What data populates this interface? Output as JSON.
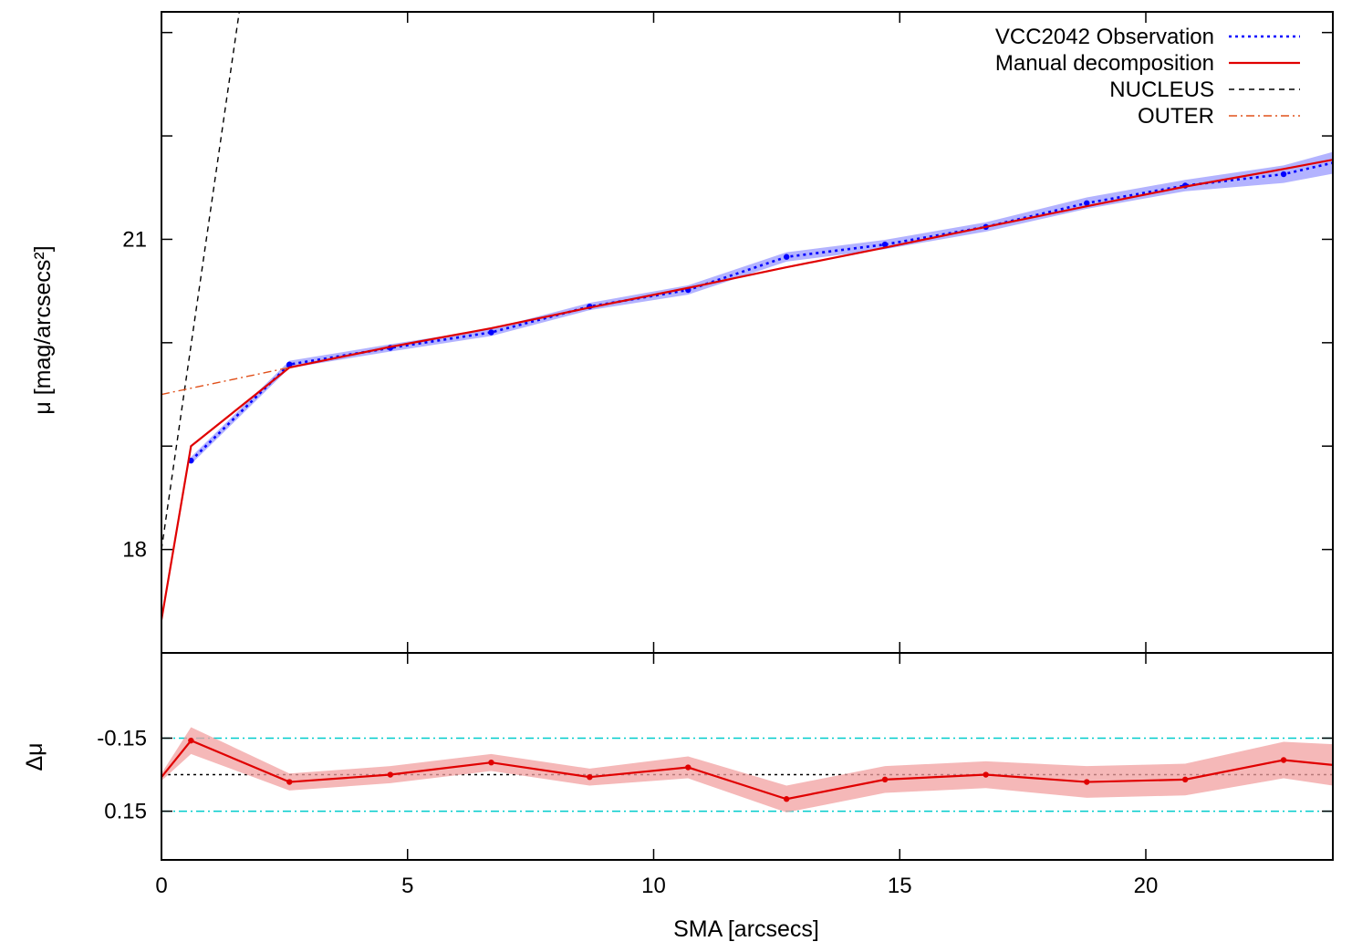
{
  "chart_data": [
    {
      "type": "line",
      "panel": "top",
      "xlabel": "",
      "ylabel": "μ [mag/arcsecs²]",
      "xlim": [
        0,
        23.8
      ],
      "ylim": [
        23.2,
        17.0
      ],
      "y_reversed": true,
      "yticks": [
        18,
        19,
        20,
        21,
        22,
        23
      ],
      "ytick_labels": [
        "18",
        "",
        "",
        "21",
        "",
        ""
      ],
      "xticks": [
        0,
        5,
        10,
        15,
        20
      ],
      "legend_position": "top-right",
      "series": [
        {
          "name": "VCC2042 Observation",
          "color": "#0000ff",
          "style": "dotted",
          "markers": true,
          "band_color": "#9999ff",
          "x": [
            0.6,
            2.6,
            4.65,
            6.7,
            8.7,
            10.7,
            12.7,
            14.7,
            16.75,
            18.8,
            20.8,
            22.8,
            23.8
          ],
          "y": [
            18.86,
            19.79,
            19.95,
            20.1,
            20.35,
            20.51,
            20.83,
            20.95,
            21.12,
            21.35,
            21.52,
            21.63,
            21.74
          ],
          "err": [
            0.01,
            0.01,
            0.01,
            0.01,
            0.01,
            0.02,
            0.02,
            0.02,
            0.02,
            0.03,
            0.03,
            0.06,
            0.08
          ]
        },
        {
          "name": "Manual decomposition",
          "color": "#e00000",
          "style": "solid",
          "x": [
            0.0,
            0.6,
            2.6,
            4.65,
            6.7,
            8.7,
            10.7,
            12.7,
            14.7,
            16.75,
            18.8,
            20.8,
            22.8,
            23.8
          ],
          "y": [
            17.32,
            19.0,
            19.76,
            19.96,
            20.14,
            20.34,
            20.53,
            20.73,
            20.92,
            21.12,
            21.32,
            21.51,
            21.68,
            21.77
          ]
        },
        {
          "name": "NUCLEUS",
          "color": "#000000",
          "style": "dashed",
          "x": [
            0.0,
            1.58
          ],
          "y": [
            18.0,
            23.2
          ]
        },
        {
          "name": "OUTER",
          "color": "#e0501a",
          "style": "dash-dot",
          "x": [
            0.0,
            2.6
          ],
          "y": [
            19.5,
            19.76
          ]
        }
      ]
    },
    {
      "type": "line",
      "panel": "bottom",
      "xlabel": "SMA [arcsecs]",
      "ylabel": "Δμ",
      "xlim": [
        0,
        23.8
      ],
      "ylim": [
        -0.5,
        0.35
      ],
      "yticks": [
        0.15,
        -0.15
      ],
      "ytick_labels": [
        "0.15",
        "-0.15"
      ],
      "xticks": [
        0,
        5,
        10,
        15,
        20
      ],
      "xtick_labels": [
        "0",
        "5",
        "10",
        "15",
        "20"
      ],
      "reference_lines": [
        {
          "y": 0.15,
          "color": "#00cccc",
          "style": "dash-dot"
        },
        {
          "y": -0.15,
          "color": "#00cccc",
          "style": "dash-dot"
        },
        {
          "y": 0.0,
          "color": "#000000",
          "style": "dotted"
        }
      ],
      "series": [
        {
          "name": "",
          "color": "#e00000",
          "style": "solid",
          "markers": true,
          "band_color": "#f2a0a0",
          "x": [
            0.0,
            0.6,
            2.6,
            4.65,
            6.7,
            8.7,
            10.7,
            12.7,
            14.7,
            16.75,
            18.8,
            20.8,
            22.8,
            23.8
          ],
          "y": [
            0.01,
            -0.14,
            0.03,
            0.0,
            -0.05,
            0.01,
            -0.03,
            0.1,
            0.02,
            0.0,
            0.03,
            0.02,
            -0.06,
            -0.04
          ],
          "err": [
            0.0,
            0.04,
            0.02,
            0.02,
            0.02,
            0.02,
            0.03,
            0.04,
            0.04,
            0.04,
            0.05,
            0.05,
            0.06,
            0.07
          ]
        }
      ]
    }
  ]
}
